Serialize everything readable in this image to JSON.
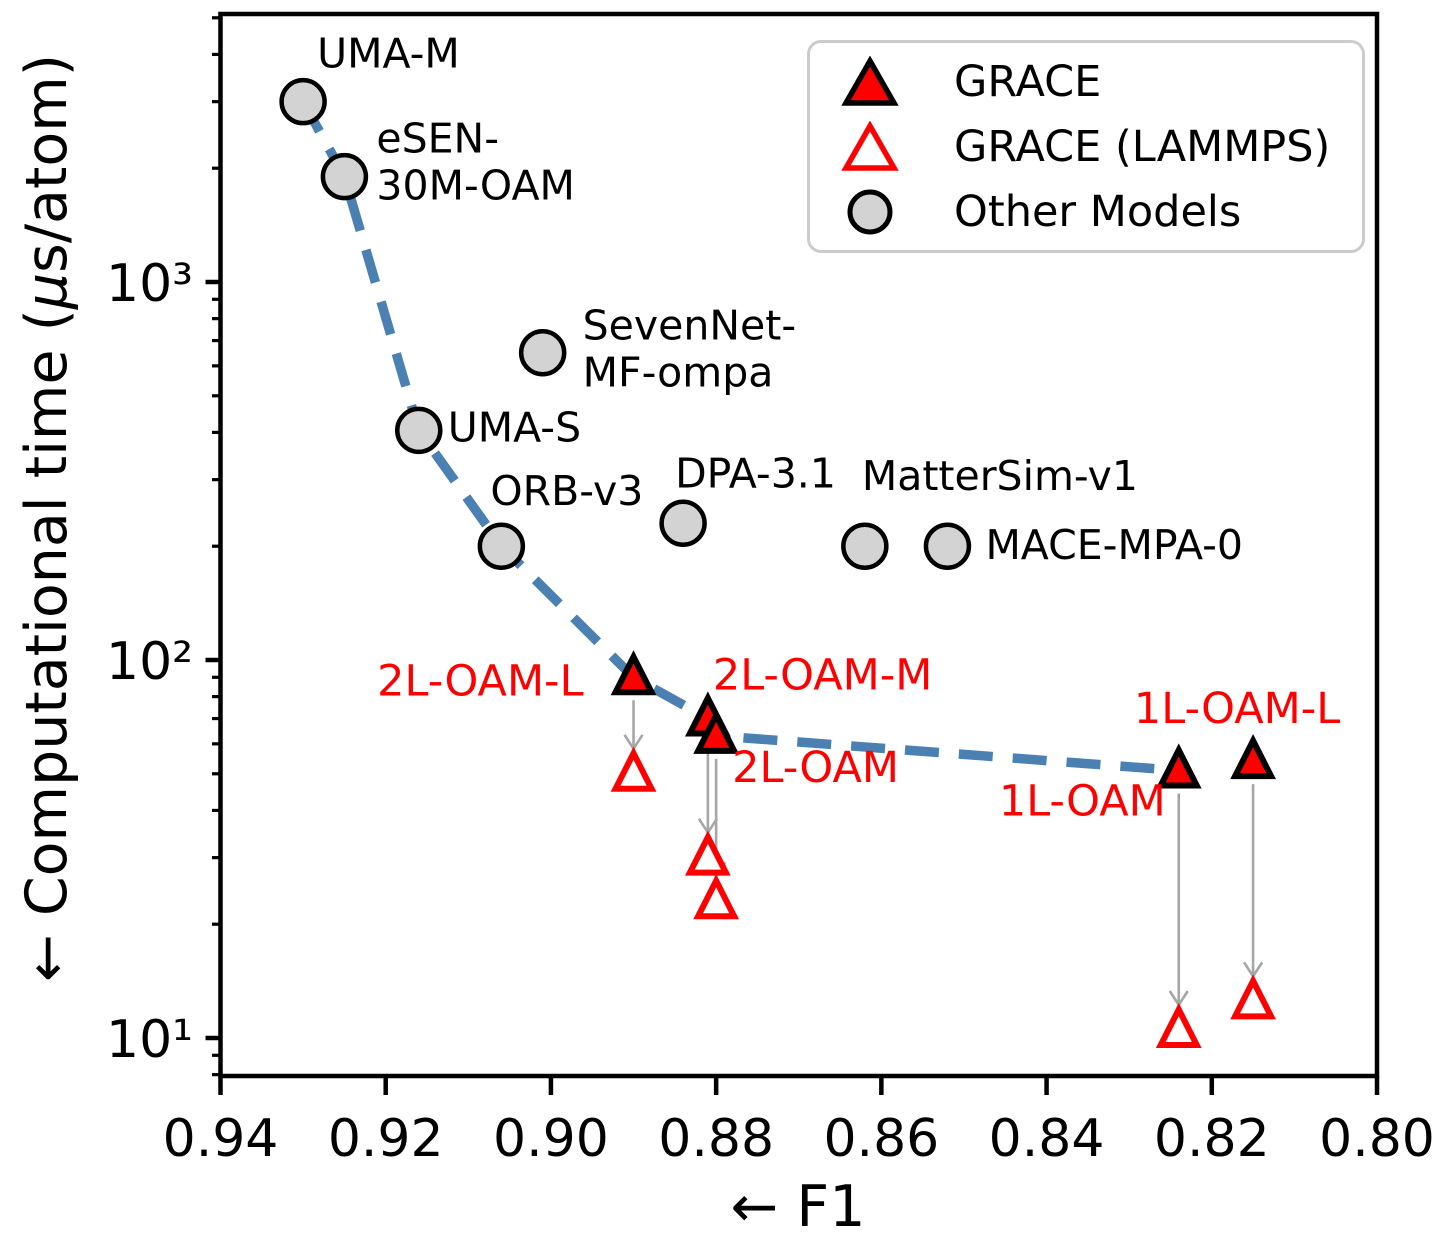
{
  "chart_data": {
    "type": "scatter",
    "title": "",
    "x_axis": {
      "label": "← F1",
      "scale": "linear",
      "reversed": true,
      "range": [
        0.94,
        0.8
      ],
      "ticks": [
        0.94,
        0.92,
        0.9,
        0.88,
        0.86,
        0.84,
        0.82,
        0.8
      ],
      "tick_labels": [
        "0.94",
        "0.92",
        "0.90",
        "0.88",
        "0.86",
        "0.84",
        "0.82",
        "0.80"
      ]
    },
    "y_axis": {
      "label": "← Computational time (μs/atom)",
      "label_parts": {
        "prefix": "← Computational time (",
        "mu": "μ",
        "suffix": "s/atom)"
      },
      "scale": "log",
      "range": [
        8,
        5200
      ],
      "ticks": [
        10,
        100,
        1000
      ],
      "tick_labels": [
        "10¹",
        "10²",
        "10³"
      ],
      "minor_ticks": [
        8,
        9,
        20,
        30,
        40,
        50,
        60,
        70,
        80,
        90,
        200,
        300,
        400,
        500,
        600,
        700,
        800,
        900,
        2000,
        3000,
        4000,
        5000
      ]
    },
    "style": {
      "grace_red": "#ff0000",
      "marker_edge_black": "#000000",
      "other_model_fill": "#d3d3d3",
      "pareto_blue": "#4a80b2",
      "arrow_gray": "#a6a6a6",
      "legend_border": "#cccccc",
      "text_color": "#000000",
      "background": "#ffffff"
    },
    "series": [
      {
        "name": "GRACE",
        "marker": "triangle-filled",
        "fill": "#ff0000",
        "edge": "#000000",
        "label_color": "#ff0000",
        "points": [
          {
            "name": "2L-OAM-L",
            "f1": 0.89,
            "time": 90,
            "label": {
              "dx": -50,
              "dy": 18,
              "anchor": "end"
            }
          },
          {
            "name": "2L-OAM-M",
            "f1": 0.881,
            "time": 70,
            "label": {
              "dx": 5,
              "dy": -29,
              "anchor": "start"
            }
          },
          {
            "name": "2L-OAM",
            "f1": 0.88,
            "time": 63,
            "label": {
              "dx": 16,
              "dy": 46,
              "anchor": "start"
            }
          },
          {
            "name": "1L-OAM",
            "f1": 0.824,
            "time": 51,
            "label": {
              "dx": -13,
              "dy": 45,
              "anchor": "end"
            }
          },
          {
            "name": "1L-OAM-L",
            "f1": 0.815,
            "time": 54,
            "label": {
              "dx": -16,
              "dy": -38,
              "anchor": "middle"
            }
          }
        ]
      },
      {
        "name": "GRACE (LAMMPS)",
        "marker": "triangle-open",
        "fill": "#ffffff",
        "edge": "#ff0000",
        "label_color": "#ff0000",
        "points": [
          {
            "name": "2L-OAM-L (LAMMPS)",
            "f1": 0.89,
            "time": 50
          },
          {
            "name": "2L-OAM-M (LAMMPS)",
            "f1": 0.881,
            "time": 30
          },
          {
            "name": "2L-OAM (LAMMPS)",
            "f1": 0.88,
            "time": 23
          },
          {
            "name": "1L-OAM (LAMMPS)",
            "f1": 0.824,
            "time": 10.5
          },
          {
            "name": "1L-OAM-L (LAMMPS)",
            "f1": 0.815,
            "time": 12.5
          }
        ]
      },
      {
        "name": "Other Models",
        "marker": "circle",
        "fill": "#d3d3d3",
        "edge": "#000000",
        "label_color": "#000000",
        "points": [
          {
            "name": "UMA-M",
            "f1": 0.93,
            "time": 3000,
            "label": {
              "dx": 14,
              "dy": -34,
              "anchor": "start"
            }
          },
          {
            "name": "eSEN-30M-OAM",
            "f1": 0.925,
            "time": 1900,
            "label": {
              "dx": 32,
              "dy": -24,
              "anchor": "start",
              "lines": [
                "eSEN-",
                "30M-OAM"
              ]
            }
          },
          {
            "name": "UMA-S",
            "f1": 0.916,
            "time": 405,
            "label": {
              "dx": 29,
              "dy": 11,
              "anchor": "start"
            }
          },
          {
            "name": "SevenNet-MF-ompa",
            "f1": 0.901,
            "time": 650,
            "label": {
              "dx": 40,
              "dy": -13,
              "anchor": "start",
              "lines": [
                "SevenNet-",
                "MF-ompa"
              ]
            }
          },
          {
            "name": "ORB-v3",
            "f1": 0.906,
            "time": 200,
            "label": {
              "dx": -11,
              "dy": -41,
              "anchor": "start"
            }
          },
          {
            "name": "DPA-3.1",
            "f1": 0.884,
            "time": 230,
            "label": {
              "dx": -8,
              "dy": -36,
              "anchor": "start"
            }
          },
          {
            "name": "MatterSim-v1",
            "f1": 0.862,
            "time": 200,
            "label": {
              "dx": -3,
              "dy": -56,
              "anchor": "start"
            }
          },
          {
            "name": "MACE-MPA-0",
            "f1": 0.852,
            "time": 200,
            "label": {
              "dx": 38,
              "dy": 13,
              "anchor": "start"
            }
          }
        ]
      }
    ],
    "pareto_front": {
      "color": "#4a80b2",
      "style": "dashed",
      "points": [
        [
          0.93,
          3000
        ],
        [
          0.925,
          1900
        ],
        [
          0.916,
          405
        ],
        [
          0.906,
          200
        ],
        [
          0.89,
          90
        ],
        [
          0.881,
          70
        ],
        [
          0.88,
          63
        ],
        [
          0.824,
          51
        ]
      ]
    },
    "legend": {
      "position": "top-right",
      "items": [
        {
          "label": "GRACE"
        },
        {
          "label": "GRACE (LAMMPS)"
        },
        {
          "label": "Other Models"
        }
      ]
    }
  }
}
